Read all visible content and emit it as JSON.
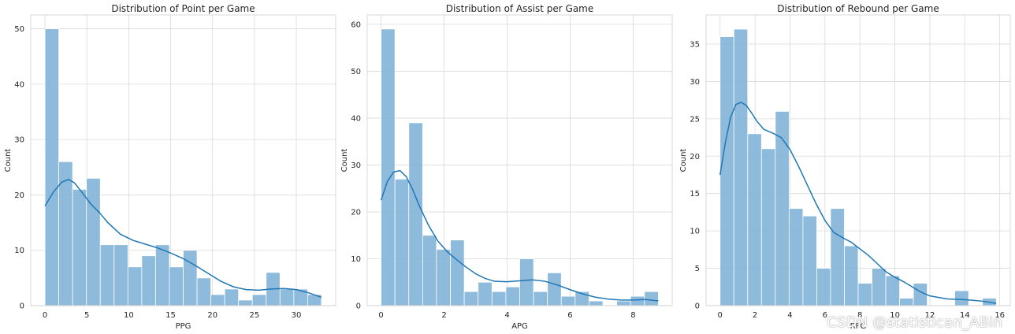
{
  "watermark": "CSDN @statistican_ABin",
  "colors": {
    "bar": "#82b3d8",
    "kde": "#1f77b4",
    "grid": "#d9d9d9"
  },
  "chart_data": [
    {
      "type": "bar",
      "title": "Distribution of Point per Game",
      "xlabel": "PPG",
      "ylabel": "Count",
      "xlim": [
        -1.7,
        34.7
      ],
      "ylim": [
        0,
        52.5
      ],
      "xticks": [
        0,
        5,
        10,
        15,
        20,
        25,
        30
      ],
      "yticks": [
        0,
        10,
        20,
        30,
        40,
        50
      ],
      "grid": true,
      "bin_edges": [
        0,
        1.65,
        3.3,
        4.95,
        6.6,
        8.25,
        9.9,
        11.55,
        13.2,
        14.85,
        16.5,
        18.15,
        19.8,
        21.45,
        23.1,
        24.75,
        26.4,
        28.05,
        29.7,
        31.35,
        33
      ],
      "values": [
        50,
        26,
        21,
        23,
        11,
        11,
        7,
        9,
        11,
        7,
        10,
        5,
        2,
        3,
        1,
        2,
        6,
        3,
        3,
        2
      ],
      "kde_x": [
        0,
        1,
        2,
        2.8,
        3.5,
        4.5,
        5.5,
        6.5,
        7.5,
        9,
        10.5,
        12,
        13.5,
        15,
        16.5,
        18,
        19.5,
        21,
        22.5,
        24,
        25.5,
        27,
        28.5,
        30,
        31.5,
        33
      ],
      "kde_y": [
        18,
        20.5,
        22.3,
        22.8,
        22.2,
        20.3,
        18.3,
        16.8,
        15,
        12.9,
        11.8,
        11.1,
        10.4,
        9.5,
        8.5,
        7.2,
        5.8,
        4.4,
        3.4,
        2.9,
        2.8,
        3,
        3.1,
        2.9,
        2.3,
        1.5
      ]
    },
    {
      "type": "bar",
      "title": "Distribution of Assist per Game",
      "xlabel": "APG",
      "ylabel": "Count",
      "xlim": [
        -0.44,
        9.24
      ],
      "ylim": [
        0,
        62
      ],
      "xticks": [
        0,
        2,
        4,
        6,
        8
      ],
      "yticks": [
        0,
        10,
        20,
        30,
        40,
        50,
        60
      ],
      "grid": true,
      "bin_edges": [
        0,
        0.44,
        0.88,
        1.32,
        1.76,
        2.2,
        2.64,
        3.08,
        3.52,
        3.96,
        4.4,
        4.84,
        5.28,
        5.72,
        6.16,
        6.6,
        7.04,
        7.48,
        7.92,
        8.36,
        8.8
      ],
      "values": [
        59,
        27,
        39,
        15,
        12,
        14,
        3,
        5,
        3,
        4,
        10,
        3,
        7,
        2,
        3,
        1,
        0,
        1,
        2,
        3
      ],
      "kde_x": [
        0,
        0.2,
        0.4,
        0.6,
        0.8,
        1,
        1.2,
        1.5,
        1.8,
        2.1,
        2.4,
        2.7,
        3,
        3.3,
        3.6,
        4,
        4.4,
        4.8,
        5.2,
        5.6,
        6,
        6.4,
        6.8,
        7.2,
        7.6,
        8,
        8.4,
        8.8
      ],
      "kde_y": [
        22.5,
        26.5,
        28.5,
        28.8,
        27.5,
        24.8,
        21.5,
        17.2,
        13.8,
        11.5,
        9.8,
        8.2,
        6.8,
        5.8,
        5.2,
        5.1,
        5.3,
        5.5,
        5.2,
        4.4,
        3.4,
        2.5,
        1.8,
        1.4,
        1.2,
        1.2,
        1.3,
        1
      ]
    },
    {
      "type": "bar",
      "title": "Distribution of Rebound per Game",
      "xlabel": "RPG",
      "ylabel": "Count",
      "xlim": [
        -0.8,
        16.6
      ],
      "ylim": [
        0,
        38.9
      ],
      "xticks": [
        0,
        2,
        4,
        6,
        8,
        10,
        12,
        14,
        16
      ],
      "yticks": [
        0,
        5,
        10,
        15,
        20,
        25,
        30,
        35
      ],
      "grid": true,
      "bin_edges": [
        0,
        0.79,
        1.58,
        2.37,
        3.16,
        3.95,
        4.74,
        5.53,
        6.32,
        7.11,
        7.9,
        8.69,
        9.48,
        10.27,
        11.06,
        11.85,
        12.64,
        13.43,
        14.22,
        15.01,
        15.8
      ],
      "values": [
        36,
        37,
        23,
        21,
        26,
        13,
        12,
        5,
        13,
        8,
        3,
        5,
        4,
        1,
        3,
        0,
        0,
        2,
        0,
        1
      ],
      "kde_x": [
        0,
        0.3,
        0.6,
        0.9,
        1.2,
        1.5,
        1.8,
        2.1,
        2.5,
        3,
        3.5,
        4,
        4.5,
        5,
        5.5,
        6,
        6.5,
        7,
        7.5,
        8,
        8.5,
        9,
        9.5,
        10,
        10.5,
        11,
        11.5,
        12,
        13,
        14,
        15,
        15.8
      ],
      "kde_y": [
        17.5,
        21.8,
        25.2,
        26.9,
        27.2,
        26.8,
        25.8,
        24.7,
        23.6,
        23.1,
        22.5,
        20.9,
        18.6,
        16.1,
        13.6,
        11.4,
        9.8,
        9.1,
        8.5,
        7.6,
        6.7,
        5.6,
        4.5,
        3.8,
        3.2,
        2.5,
        1.8,
        1.3,
        0.9,
        0.8,
        0.6,
        0.3
      ]
    }
  ]
}
